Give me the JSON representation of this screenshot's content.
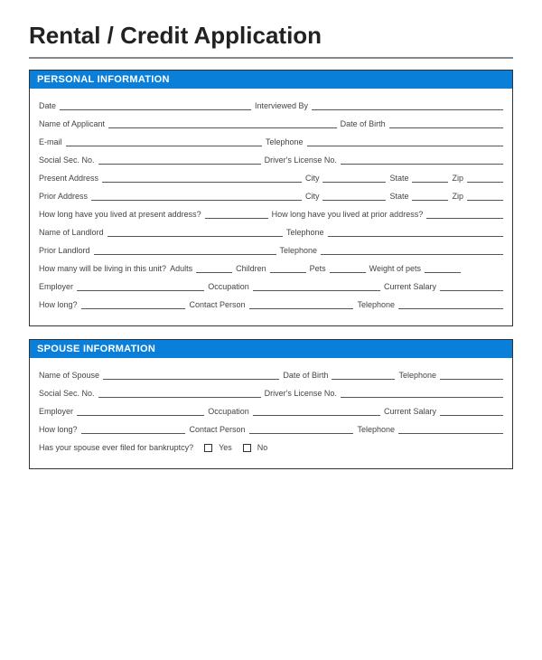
{
  "title": "Rental / Credit Application",
  "sections": {
    "personal": {
      "header": "PERSONAL INFORMATION",
      "fields": {
        "date": "Date",
        "interviewed_by": "Interviewed By",
        "name_of_applicant": "Name of Applicant",
        "date_of_birth": "Date of Birth",
        "email": "E-mail",
        "telephone": "Telephone",
        "social_sec_no": "Social Sec. No.",
        "drivers_license_no": "Driver's License No.",
        "present_address": "Present Address",
        "city": "City",
        "state": "State",
        "zip": "Zip",
        "prior_address": "Prior Address",
        "how_long_present": "How long have you lived at present address?",
        "how_long_prior": "How long have you lived at prior address?",
        "name_of_landlord": "Name of Landlord",
        "prior_landlord": "Prior Landlord",
        "how_many_living": "How many will be living in this unit?",
        "adults": "Adults",
        "children": "Children",
        "pets": "Pets",
        "weight_of_pets": "Weight of pets",
        "employer": "Employer",
        "occupation": "Occupation",
        "current_salary": "Current Salary",
        "how_long": "How long?",
        "contact_person": "Contact Person"
      }
    },
    "spouse": {
      "header": "SPOUSE INFORMATION",
      "fields": {
        "name_of_spouse": "Name of Spouse",
        "date_of_birth": "Date of Birth",
        "telephone": "Telephone",
        "social_sec_no": "Social Sec. No.",
        "drivers_license_no": "Driver's License No.",
        "employer": "Employer",
        "occupation": "Occupation",
        "current_salary": "Current Salary",
        "how_long": "How long?",
        "contact_person": "Contact Person",
        "bankruptcy_question": "Has your spouse ever filed for bankruptcy?",
        "yes": "Yes",
        "no": "No"
      }
    }
  },
  "colors": {
    "header_bg": "#0a7fd9",
    "header_text": "#ffffff",
    "border": "#333333",
    "text": "#444444",
    "rule": "#888888"
  }
}
